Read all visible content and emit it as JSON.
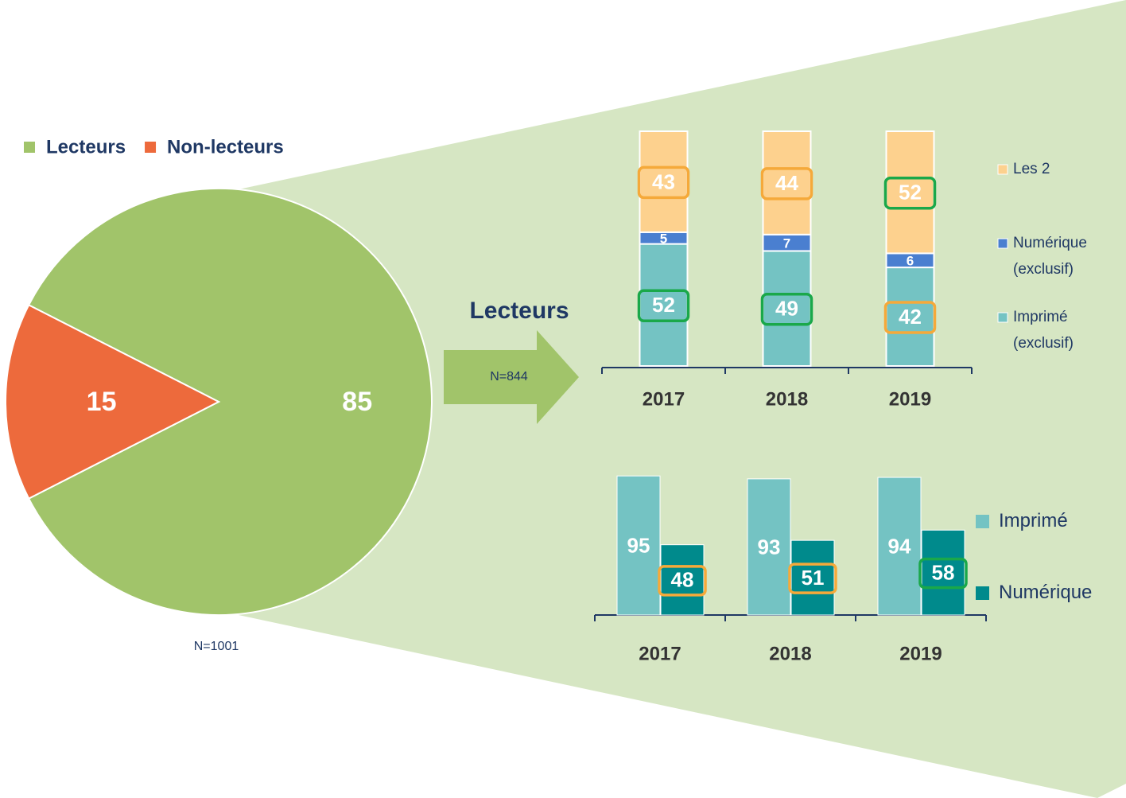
{
  "annotations": {
    "arrow_title": "Lecteurs",
    "arrow_note": "N=844"
  },
  "chart_data": [
    {
      "type": "pie",
      "categories": [
        "Lecteurs",
        "Non-lecteurs"
      ],
      "values": [
        85,
        15
      ],
      "colors": [
        "#a1c46a",
        "#ed6a3c"
      ],
      "note": "N=1001",
      "legend": "top-left"
    },
    {
      "type": "bar",
      "stacked": true,
      "categories": [
        "2017",
        "2018",
        "2019"
      ],
      "ylim": [
        0,
        100
      ],
      "legend": "right",
      "series": [
        {
          "name": "Imprimé (exclusif)",
          "color": "#74c3c3",
          "values": [
            52,
            49,
            42
          ],
          "highlight_colors": [
            "#1aa84a",
            "#1aa84a",
            "#f5a93a"
          ]
        },
        {
          "name": "Numérique (exclusif)",
          "color": "#4a7fd0",
          "values": [
            5,
            7,
            6
          ],
          "highlight_colors": [
            null,
            null,
            null
          ]
        },
        {
          "name": "Les 2",
          "color": "#fdd18e",
          "values": [
            43,
            44,
            52
          ],
          "highlight_colors": [
            "#f5a93a",
            "#f5a93a",
            "#1aa84a"
          ]
        }
      ]
    },
    {
      "type": "bar",
      "stacked": false,
      "categories": [
        "2017",
        "2018",
        "2019"
      ],
      "ylim": [
        0,
        100
      ],
      "legend": "right",
      "series": [
        {
          "name": "Imprimé",
          "color": "#74c3c3",
          "values": [
            95,
            93,
            94
          ],
          "highlight_colors": [
            null,
            null,
            null
          ]
        },
        {
          "name": "Numérique",
          "color": "#008a8c",
          "values": [
            48,
            51,
            58
          ],
          "highlight_colors": [
            "#f5a93a",
            "#f5a93a",
            "#1aa84a"
          ]
        }
      ]
    }
  ]
}
